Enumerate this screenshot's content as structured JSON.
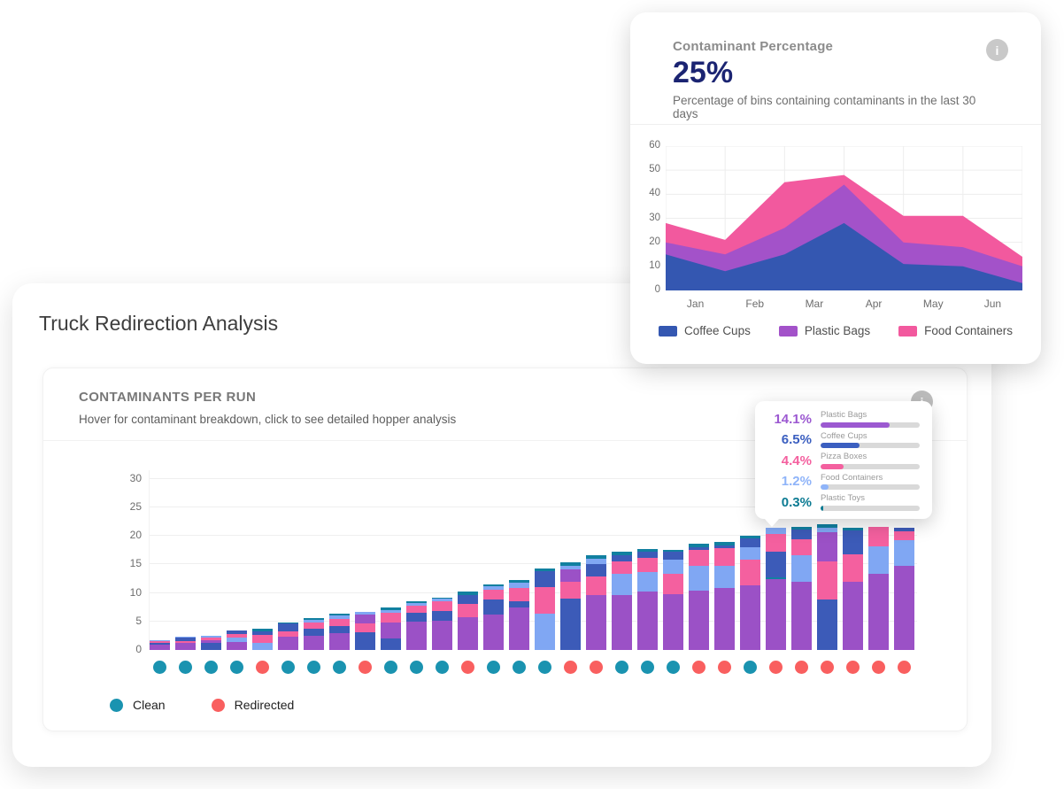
{
  "kpi_card": {
    "title": "Contaminant Percentage",
    "value": "25%",
    "description": "Percentage of bins containing contaminants in the last 30 days"
  },
  "main_card": {
    "title": "Truck Redirection Analysis",
    "panel": {
      "title": "CONTAMINANTS PER RUN",
      "subtitle": "Hover for contaminant breakdown, click to see detailed hopper analysis",
      "legend": [
        {
          "label": "Clean",
          "color": "#1a93b0"
        },
        {
          "label": "Redirected",
          "color": "#f95f5f"
        }
      ]
    }
  },
  "tooltip": {
    "track_color": "#d9d9d9",
    "rows": [
      {
        "pct": "14.1%",
        "label": "Plastic Bags",
        "color": "#9c59d1",
        "fill_pct": 70
      },
      {
        "pct": "6.5%",
        "label": "Coffee Cups",
        "color": "#3b5fc0",
        "fill_pct": 39
      },
      {
        "pct": "4.4%",
        "label": "Pizza Boxes",
        "color": "#f4609f",
        "fill_pct": 23
      },
      {
        "pct": "1.2%",
        "label": "Food Containers",
        "color": "#8fb4f9",
        "fill_pct": 8
      },
      {
        "pct": "0.3%",
        "label": "Plastic Toys",
        "color": "#0c7b93",
        "fill_pct": 3
      }
    ]
  },
  "chart_data": [
    {
      "id": "contaminant-trend",
      "type": "area",
      "stacked": true,
      "title": "",
      "x_labels": [
        "Jan",
        "Feb",
        "Mar",
        "Apr",
        "May",
        "Jun"
      ],
      "points_note": "7 stacked vertices drawn at the 7 vertical gridlines; month labels sit between gridlines",
      "series": [
        {
          "name": "Coffee Cups",
          "color": "#3457b1",
          "values": [
            15,
            8,
            15,
            28,
            11,
            10,
            3
          ]
        },
        {
          "name": "Plastic Bags",
          "color": "#a352c9",
          "values": [
            5,
            7,
            11,
            16,
            9,
            8,
            7
          ]
        },
        {
          "name": "Food Containers",
          "color": "#f2599e",
          "values": [
            8,
            6,
            19,
            4,
            11,
            13,
            4
          ]
        }
      ],
      "ylim": [
        0,
        60
      ],
      "yticks": [
        0,
        10,
        20,
        30,
        40,
        50,
        60
      ],
      "grid": true,
      "legend_position": "bottom"
    },
    {
      "id": "contaminants-per-run",
      "type": "bar",
      "stacked": true,
      "ylim": [
        0,
        30
      ],
      "yticks": [
        0,
        5,
        10,
        15,
        20,
        25,
        30
      ],
      "grid": true,
      "palette": {
        "plastic_bags": "#9b51c6",
        "coffee_cups": "#3c5bb8",
        "pizza_boxes": "#f4609f",
        "food_containers": "#80a7f3",
        "plastic_toys": "#1180a0"
      },
      "status_colors": {
        "clean": "#1a93b0",
        "redirected": "#f95f5f"
      },
      "runs": [
        {
          "status": "clean",
          "segments": [
            [
              "plastic_bags",
              0.9
            ],
            [
              "coffee_cups",
              0.3
            ],
            [
              "pizza_boxes",
              0.3
            ],
            [
              "food_containers",
              0.2
            ]
          ]
        },
        {
          "status": "clean",
          "segments": [
            [
              "plastic_bags",
              1.2
            ],
            [
              "pizza_boxes",
              0.4
            ],
            [
              "coffee_cups",
              0.6
            ],
            [
              "food_containers",
              0.1
            ]
          ]
        },
        {
          "status": "clean",
          "segments": [
            [
              "coffee_cups",
              1.3
            ],
            [
              "plastic_bags",
              0.45
            ],
            [
              "pizza_boxes",
              0.4
            ],
            [
              "food_containers",
              0.3
            ]
          ]
        },
        {
          "status": "clean",
          "segments": [
            [
              "plastic_bags",
              1.45
            ],
            [
              "food_containers",
              0.7
            ],
            [
              "pizza_boxes",
              0.6
            ],
            [
              "coffee_cups",
              0.6
            ]
          ]
        },
        {
          "status": "redirected",
          "segments": [
            [
              "food_containers",
              1.2
            ],
            [
              "pizza_boxes",
              1.4
            ],
            [
              "coffee_cups",
              0.75
            ],
            [
              "plastic_toys",
              0.35
            ]
          ]
        },
        {
          "status": "clean",
          "segments": [
            [
              "plastic_bags",
              2.3
            ],
            [
              "pizza_boxes",
              1.0
            ],
            [
              "coffee_cups",
              1.3
            ],
            [
              "plastic_toys",
              0.3
            ]
          ]
        },
        {
          "status": "clean",
          "segments": [
            [
              "plastic_bags",
              2.5
            ],
            [
              "coffee_cups",
              1.2
            ],
            [
              "pizza_boxes",
              1.2
            ],
            [
              "food_containers",
              0.4
            ],
            [
              "plastic_toys",
              0.25
            ]
          ]
        },
        {
          "status": "clean",
          "segments": [
            [
              "plastic_bags",
              2.9
            ],
            [
              "coffee_cups",
              1.3
            ],
            [
              "pizza_boxes",
              1.3
            ],
            [
              "food_containers",
              0.6
            ],
            [
              "plastic_toys",
              0.3
            ]
          ]
        },
        {
          "status": "redirected",
          "segments": [
            [
              "coffee_cups",
              3.1
            ],
            [
              "pizza_boxes",
              1.6
            ],
            [
              "plastic_bags",
              1.5
            ],
            [
              "food_containers",
              0.5
            ]
          ]
        },
        {
          "status": "clean",
          "segments": [
            [
              "coffee_cups",
              2.1
            ],
            [
              "plastic_bags",
              2.7
            ],
            [
              "pizza_boxes",
              1.7
            ],
            [
              "food_containers",
              0.5
            ],
            [
              "plastic_toys",
              0.4
            ]
          ]
        },
        {
          "status": "clean",
          "segments": [
            [
              "plastic_bags",
              4.9
            ],
            [
              "coffee_cups",
              1.7
            ],
            [
              "pizza_boxes",
              1.2
            ],
            [
              "food_containers",
              0.5
            ],
            [
              "plastic_toys",
              0.25
            ]
          ]
        },
        {
          "status": "clean",
          "segments": [
            [
              "plastic_bags",
              5.1
            ],
            [
              "coffee_cups",
              1.8
            ],
            [
              "pizza_boxes",
              1.6
            ],
            [
              "food_containers",
              0.5
            ],
            [
              "plastic_toys",
              0.25
            ]
          ]
        },
        {
          "status": "redirected",
          "segments": [
            [
              "plastic_bags",
              5.7
            ],
            [
              "pizza_boxes",
              2.4
            ],
            [
              "coffee_cups",
              1.6
            ],
            [
              "plastic_toys",
              0.6
            ]
          ]
        },
        {
          "status": "clean",
          "segments": [
            [
              "plastic_bags",
              6.2
            ],
            [
              "coffee_cups",
              2.6
            ],
            [
              "pizza_boxes",
              1.8
            ],
            [
              "food_containers",
              0.6
            ],
            [
              "plastic_toys",
              0.3
            ]
          ]
        },
        {
          "status": "clean",
          "segments": [
            [
              "plastic_bags",
              7.5
            ],
            [
              "coffee_cups",
              1.0
            ],
            [
              "pizza_boxes",
              2.4
            ],
            [
              "food_containers",
              0.9
            ],
            [
              "plastic_toys",
              0.4
            ]
          ]
        },
        {
          "status": "clean",
          "segments": [
            [
              "food_containers",
              6.3
            ],
            [
              "pizza_boxes",
              4.8
            ],
            [
              "coffee_cups",
              2.8
            ],
            [
              "plastic_toys",
              0.4
            ]
          ]
        },
        {
          "status": "redirected",
          "segments": [
            [
              "coffee_cups",
              9.0
            ],
            [
              "pizza_boxes",
              3.0
            ],
            [
              "plastic_bags",
              2.2
            ],
            [
              "food_containers",
              0.6
            ],
            [
              "plastic_toys",
              0.5
            ]
          ]
        },
        {
          "status": "redirected",
          "segments": [
            [
              "plastic_bags",
              9.6
            ],
            [
              "pizza_boxes",
              3.3
            ],
            [
              "coffee_cups",
              2.2
            ],
            [
              "food_containers",
              0.9
            ],
            [
              "plastic_toys",
              0.6
            ]
          ]
        },
        {
          "status": "clean",
          "segments": [
            [
              "plastic_bags",
              9.6
            ],
            [
              "food_containers",
              3.7
            ],
            [
              "pizza_boxes",
              2.2
            ],
            [
              "coffee_cups",
              1.2
            ],
            [
              "plastic_toys",
              0.6
            ]
          ]
        },
        {
          "status": "clean",
          "segments": [
            [
              "plastic_bags",
              10.3
            ],
            [
              "food_containers",
              3.4
            ],
            [
              "pizza_boxes",
              2.5
            ],
            [
              "coffee_cups",
              1.1
            ],
            [
              "plastic_toys",
              0.4
            ]
          ]
        },
        {
          "status": "clean",
          "segments": [
            [
              "plastic_bags",
              9.8
            ],
            [
              "pizza_boxes",
              3.5
            ],
            [
              "food_containers",
              2.6
            ],
            [
              "coffee_cups",
              1.3
            ],
            [
              "plastic_toys",
              0.4
            ]
          ]
        },
        {
          "status": "redirected",
          "segments": [
            [
              "plastic_bags",
              10.4
            ],
            [
              "food_containers",
              4.4
            ],
            [
              "pizza_boxes",
              2.8
            ],
            [
              "coffee_cups",
              0.4
            ],
            [
              "plastic_toys",
              0.6
            ]
          ]
        },
        {
          "status": "redirected",
          "segments": [
            [
              "plastic_bags",
              10.8
            ],
            [
              "food_containers",
              3.9
            ],
            [
              "pizza_boxes",
              3.1
            ],
            [
              "coffee_cups",
              0.5
            ],
            [
              "plastic_toys",
              0.7
            ]
          ]
        },
        {
          "status": "clean",
          "segments": [
            [
              "plastic_bags",
              11.3
            ],
            [
              "pizza_boxes",
              4.6
            ],
            [
              "food_containers",
              2.1
            ],
            [
              "coffee_cups",
              1.6
            ],
            [
              "plastic_toys",
              0.4
            ]
          ]
        },
        {
          "status": "redirected",
          "segments": [
            [
              "plastic_bags",
              12.4
            ],
            [
              "plastic_toys",
              0.4
            ],
            [
              "coffee_cups",
              4.4
            ],
            [
              "pizza_boxes",
              3.2
            ],
            [
              "food_containers",
              1.0
            ]
          ]
        },
        {
          "status": "redirected",
          "segments": [
            [
              "plastic_bags",
              12.0
            ],
            [
              "food_containers",
              4.6
            ],
            [
              "pizza_boxes",
              2.8
            ],
            [
              "coffee_cups",
              1.7
            ],
            [
              "plastic_toys",
              0.5
            ]
          ]
        },
        {
          "status": "redirected",
          "segments": [
            [
              "coffee_cups",
              8.8
            ],
            [
              "pizza_boxes",
              6.7
            ],
            [
              "plastic_bags",
              5.2
            ],
            [
              "food_containers",
              0.8
            ],
            [
              "plastic_toys",
              0.6
            ]
          ]
        },
        {
          "status": "redirected",
          "segments": [
            [
              "plastic_bags",
              11.9
            ],
            [
              "pizza_boxes",
              4.9
            ],
            [
              "coffee_cups",
              4.2
            ],
            [
              "plastic_toys",
              0.4
            ]
          ]
        },
        {
          "status": "redirected",
          "segments": [
            [
              "plastic_bags",
              13.3
            ],
            [
              "food_containers",
              4.9
            ],
            [
              "pizza_boxes",
              3.4
            ]
          ]
        },
        {
          "status": "redirected",
          "segments": [
            [
              "plastic_bags",
              14.8
            ],
            [
              "food_containers",
              4.4
            ],
            [
              "pizza_boxes",
              1.6
            ],
            [
              "coffee_cups",
              0.6
            ]
          ]
        }
      ]
    }
  ]
}
